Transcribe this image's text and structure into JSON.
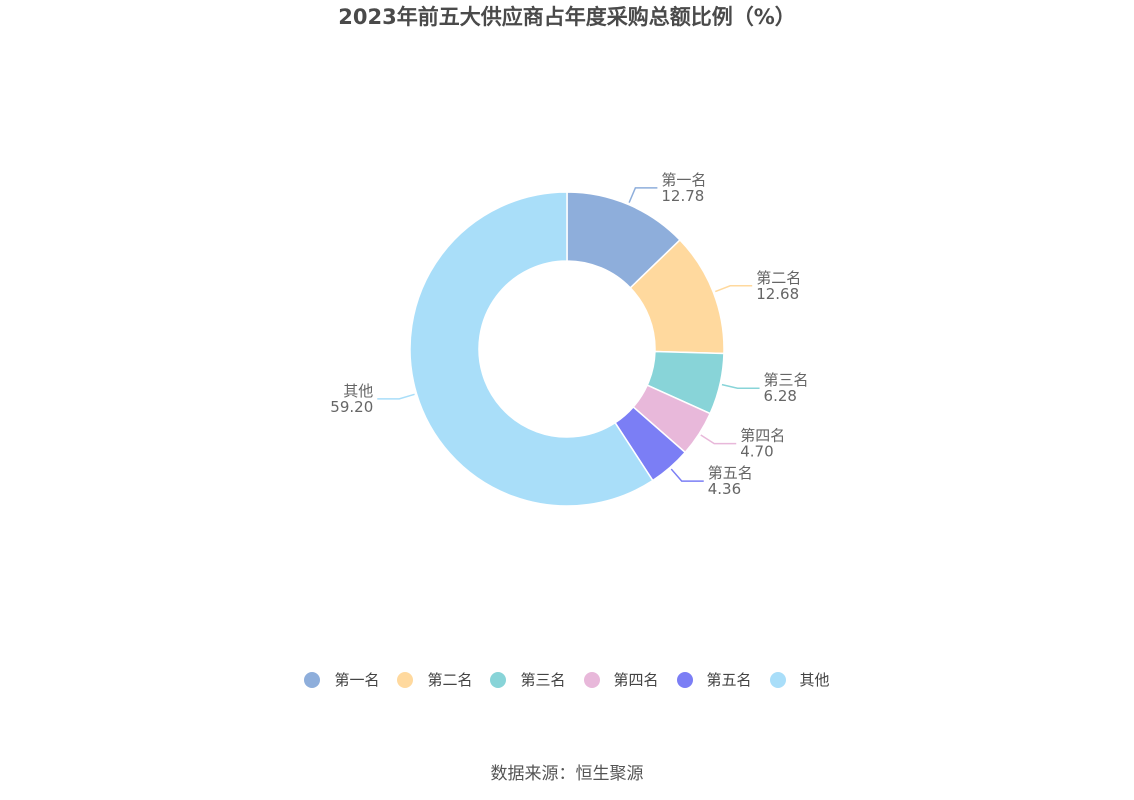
{
  "chart_data": {
    "type": "pie",
    "title": "2023年前五大供应商占年度采购总额比例（%）",
    "source": "数据来源：恒生聚源",
    "slices": [
      {
        "label": "第一名",
        "value": 12.78,
        "value_label": "12.78",
        "color": "#8eaedb"
      },
      {
        "label": "第二名",
        "value": 12.68,
        "value_label": "12.68",
        "color": "#ffd99e"
      },
      {
        "label": "第三名",
        "value": 6.28,
        "value_label": "6.28",
        "color": "#88d4d8"
      },
      {
        "label": "第四名",
        "value": 4.7,
        "value_label": "4.70",
        "color": "#e8b8da"
      },
      {
        "label": "第五名",
        "value": 4.36,
        "value_label": "4.36",
        "color": "#7b7ef5"
      },
      {
        "label": "其他",
        "value": 59.2,
        "value_label": "59.20",
        "color": "#a9def9"
      }
    ],
    "legend_position": "bottom"
  }
}
